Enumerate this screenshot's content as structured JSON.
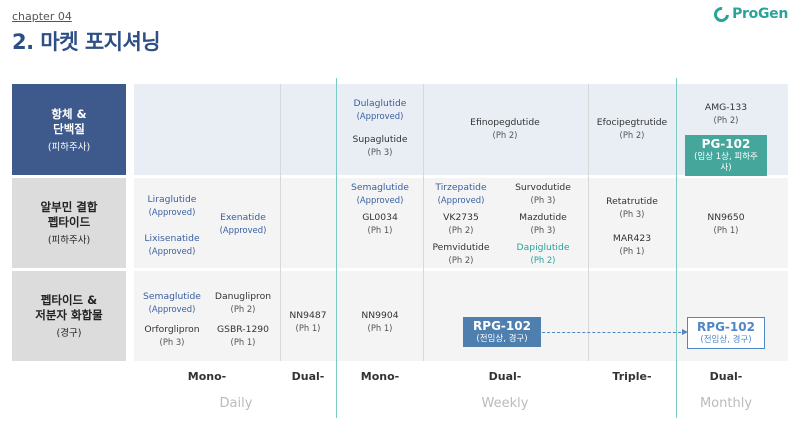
{
  "header": {
    "chapter": "chapter 04",
    "title": "2. 마켓 포지셔닝",
    "logo_text": "ProGen",
    "accent": "#2aa39a"
  },
  "rows": [
    {
      "title": "항체 &\n단백질",
      "sub": "(피하주사)"
    },
    {
      "title": "알부민 결합\n펩타이드",
      "sub": "(피하주사)"
    },
    {
      "title": "펩타이드 &\n저분자 화합물",
      "sub": "(경구)"
    }
  ],
  "cells": {
    "r1_mono_w_dulaglutide": {
      "name": "Dulaglutide",
      "phase": "(Approved)"
    },
    "r1_mono_w_supaglutide": {
      "name": "Supaglutide",
      "phase": "(Ph 3)"
    },
    "r1_dual_w_efinopeg": {
      "name": "Efinopegdutide",
      "phase": "(Ph 2)"
    },
    "r1_triple_w_efocipeg": {
      "name": "Efocipegtrutide",
      "phase": "(Ph 2)"
    },
    "r1_dual_m_amg": {
      "name": "AMG-133",
      "phase": "(Ph 2)"
    },
    "r1_pg102": {
      "name": "PG-102",
      "phase": "(임상 1상, 피하주사)"
    },
    "r2_mono_d_lira": {
      "name": "Liraglutide",
      "phase": "(Approved)"
    },
    "r2_mono_d_lixi": {
      "name": "Lixisenatide",
      "phase": "(Approved)"
    },
    "r2_mono_d_exen": {
      "name": "Exenatide",
      "phase": "(Approved)"
    },
    "r2_mono_w_sema": {
      "name": "Semaglutide",
      "phase": "(Approved)"
    },
    "r2_mono_w_gl0034": {
      "name": "GL0034",
      "phase": "(Ph 1)"
    },
    "r2_dual_w_tirz": {
      "name": "Tirzepatide",
      "phase": "(Approved)"
    },
    "r2_dual_w_vk2735": {
      "name": "VK2735",
      "phase": "(Ph 2)"
    },
    "r2_dual_w_pemvi": {
      "name": "Pemvidutide",
      "phase": "(Ph 2)"
    },
    "r2_dual_w_survo": {
      "name": "Survodutide",
      "phase": "(Ph 3)"
    },
    "r2_dual_w_mazdu": {
      "name": "Mazdutide",
      "phase": "(Ph 3)"
    },
    "r2_dual_w_dapi": {
      "name": "Dapiglutide",
      "phase": "(Ph 2)"
    },
    "r2_triple_w_reta": {
      "name": "Retatrutide",
      "phase": "(Ph 3)"
    },
    "r2_triple_w_mar423": {
      "name": "MAR423",
      "phase": "(Ph 1)"
    },
    "r2_dual_m_nn9650": {
      "name": "NN9650",
      "phase": "(Ph 1)"
    },
    "r3_mono_d_sema": {
      "name": "Semaglutide",
      "phase": "(Approved)"
    },
    "r3_mono_d_orfor": {
      "name": "Orforglipron",
      "phase": "(Ph 3)"
    },
    "r3_mono_d_danu": {
      "name": "Danuglipron",
      "phase": "(Ph 2)"
    },
    "r3_mono_d_gsbr": {
      "name": "GSBR-1290",
      "phase": "(Ph 1)"
    },
    "r3_dual_d_nn9487": {
      "name": "NN9487",
      "phase": "(Ph 1)"
    },
    "r3_mono_w_nn9904": {
      "name": "NN9904",
      "phase": "(Ph 1)"
    },
    "r3_rpg102_weekly": {
      "name": "RPG-102",
      "phase": "(전임상, 경구)"
    },
    "r3_rpg102_monthly": {
      "name": "RPG-102",
      "phase": "(전임상, 경구)"
    }
  },
  "columns": [
    "Mono-",
    "Dual-",
    "Mono-",
    "Dual-",
    "Triple-",
    "Dual-"
  ],
  "frequencies": [
    "Daily",
    "Weekly",
    "Monthly"
  ]
}
